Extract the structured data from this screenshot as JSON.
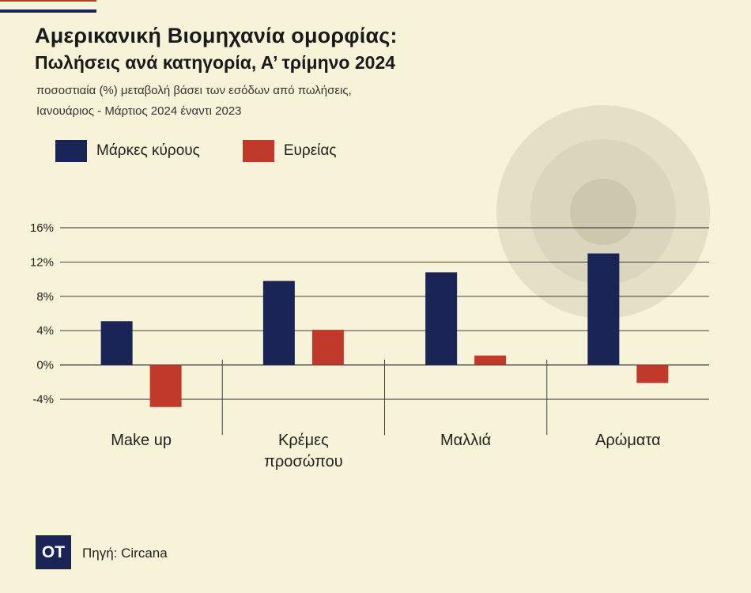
{
  "header": {
    "title": "Αμερικανική Βιομηχανία ομορφίας:",
    "subtitle": "Πωλήσεις ανά κατηγορία, Α’ τρίμηνο 2024",
    "description_line1": "ποσοστιαία (%) μεταβολή βάσει των εσόδων από πωλήσεις,",
    "description_line2": "Ιανουάριος - Μάρτιος 2024 έναντι 2023"
  },
  "legend": [
    {
      "label": "Μάρκες κύρους",
      "color": "#1b2457"
    },
    {
      "label": "Ευρείας",
      "color": "#c0392b"
    }
  ],
  "footer": {
    "logo_text": "OT",
    "source": "Πηγή: Circana"
  },
  "chart_data": {
    "type": "bar",
    "categories": [
      [
        "Make up"
      ],
      [
        "Κρέμες",
        "προσώπου"
      ],
      [
        "Μαλλιά"
      ],
      [
        "Αρώματα"
      ]
    ],
    "series": [
      {
        "name": "Μάρκες κύρους",
        "color": "#1b2457",
        "values": [
          5.1,
          9.8,
          10.8,
          13.0
        ]
      },
      {
        "name": "Ευρείας",
        "color": "#c0392b",
        "values": [
          -4.9,
          4.1,
          1.1,
          -2.1
        ]
      }
    ],
    "yticks": [
      16,
      12,
      8,
      4,
      0,
      -4
    ],
    "ytick_labels": [
      "16%",
      "12%",
      "8%",
      "4%",
      "0%",
      "-4%"
    ],
    "ylim": [
      -4,
      16
    ],
    "grid": true
  }
}
